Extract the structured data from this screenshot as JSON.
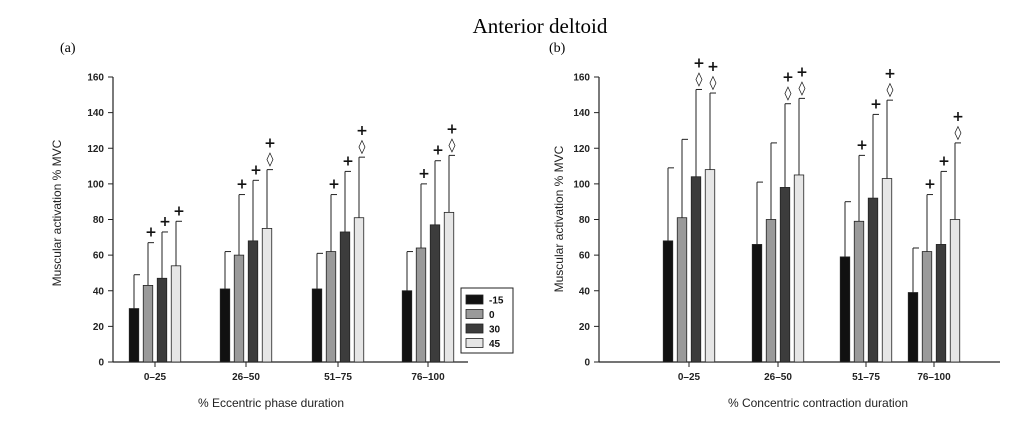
{
  "figure_title": "Anterior deltoid",
  "colors": {
    "series": [
      "#111111",
      "#9a9a9a",
      "#3c3c3c",
      "#e6e6e6"
    ],
    "axis": "#222222",
    "bar_stroke": "#222222"
  },
  "legend": {
    "entries": [
      "-15",
      "0",
      "30",
      "45"
    ],
    "placement": "inside-right-of-panel-a"
  },
  "chart_data": [
    {
      "type": "bar",
      "panel_label": "(a)",
      "title": "",
      "xlabel": "% Eccentric phase duration",
      "ylabel": "Muscular activation % MVC",
      "ylim": [
        0,
        160
      ],
      "yticks": [
        "0",
        "20",
        "40",
        "60",
        "80",
        "100",
        "120",
        "140",
        "160"
      ],
      "categories": [
        "0–25",
        "26–50",
        "51–75",
        "76–100"
      ],
      "grid": false,
      "series": [
        {
          "name": "-15",
          "values": [
            30,
            41,
            41,
            40
          ],
          "error": [
            19,
            21,
            20,
            22
          ],
          "markers": [
            "",
            "",
            "",
            ""
          ]
        },
        {
          "name": "0",
          "values": [
            43,
            60,
            62,
            64
          ],
          "error": [
            24,
            34,
            32,
            36
          ],
          "markers": [
            "+",
            "+",
            "+",
            "+"
          ]
        },
        {
          "name": "30",
          "values": [
            47,
            68,
            73,
            77
          ],
          "error": [
            26,
            34,
            34,
            36
          ],
          "markers": [
            "+",
            "+",
            "+",
            "+"
          ]
        },
        {
          "name": "45",
          "values": [
            54,
            75,
            81,
            84
          ],
          "error": [
            25,
            33,
            34,
            32
          ],
          "markers": [
            "+",
            "+◊",
            "+◊",
            "+◊"
          ]
        }
      ]
    },
    {
      "type": "bar",
      "panel_label": "(b)",
      "title": "",
      "xlabel": "% Concentric contraction duration",
      "ylabel": "Muscular activation % MVC",
      "ylim": [
        0,
        160
      ],
      "yticks": [
        "0",
        "20",
        "40",
        "60",
        "80",
        "100",
        "120",
        "140",
        "160"
      ],
      "categories": [
        "0–25",
        "26–50",
        "51–75",
        "76–100"
      ],
      "grid": false,
      "series": [
        {
          "name": "-15",
          "values": [
            68,
            66,
            59,
            39
          ],
          "error": [
            41,
            35,
            31,
            25
          ],
          "markers": [
            "",
            "",
            "",
            ""
          ]
        },
        {
          "name": "0",
          "values": [
            81,
            80,
            79,
            62
          ],
          "error": [
            44,
            43,
            37,
            32
          ],
          "markers": [
            "",
            "",
            "+",
            "+"
          ]
        },
        {
          "name": "30",
          "values": [
            104,
            98,
            92,
            66
          ],
          "error": [
            49,
            47,
            47,
            41
          ],
          "markers": [
            "+◊",
            "+◊",
            "+",
            "+"
          ]
        },
        {
          "name": "45",
          "values": [
            108,
            105,
            103,
            80
          ],
          "error": [
            43,
            43,
            44,
            43
          ],
          "markers": [
            "+◊",
            "+◊",
            "+◊",
            "+◊"
          ]
        }
      ]
    }
  ]
}
